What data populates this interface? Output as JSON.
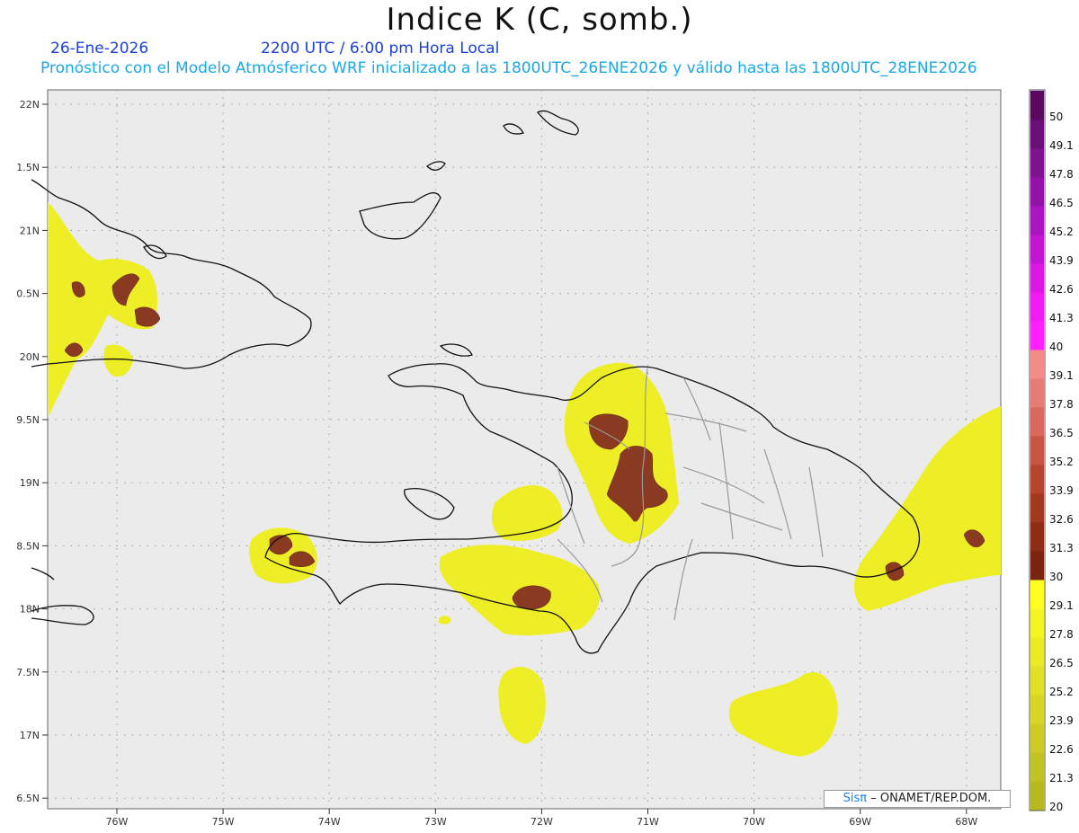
{
  "title": "Indice K (C, somb.)",
  "date": "26-Ene-2026",
  "time": "2200 UTC / 6:00 pm Hora Local",
  "forecast": "Pronóstico con el Modelo Atmósferico WRF inicializado a las 1800UTC_26ENE2026 y válido hasta las  1800UTC_28ENE2026",
  "credit_brand": "Sisπ",
  "credit_org": "– ONAMET/REP.DOM.",
  "lon_labels": [
    "76W",
    "75W",
    "74W",
    "73W",
    "72W",
    "71W",
    "70W",
    "69W",
    "68W"
  ],
  "lat_labels": [
    "22N",
    "1.5N",
    "21N",
    "0.5N",
    "20N",
    "9.5N",
    "19N",
    "8.5N",
    "18N",
    "7.5N",
    "17N",
    "6.5N"
  ],
  "colorbar": {
    "levels": [
      "50",
      "49.1",
      "47.8",
      "46.5",
      "45.2",
      "43.9",
      "42.6",
      "41.3",
      "40",
      "39.1",
      "37.8",
      "36.5",
      "35.2",
      "33.9",
      "32.6",
      "31.3",
      "30",
      "29.1",
      "27.8",
      "26.5",
      "25.2",
      "23.9",
      "22.6",
      "21.3",
      "20"
    ],
    "colors": [
      "#5a0a5e",
      "#6a0f78",
      "#7f138f",
      "#9412a8",
      "#ab14c0",
      "#c316d4",
      "#db18e6",
      "#f01cf3",
      "#ff20ff",
      "#f38b8b",
      "#e77c77",
      "#d9685e",
      "#c85544",
      "#b6452f",
      "#a33821",
      "#8e2c16",
      "#7a2410",
      "#ffff21",
      "#f5f523",
      "#ebeb25",
      "#e0e026",
      "#d6d627",
      "#cccc25",
      "#c2c222",
      "#b8b81f"
    ]
  },
  "colors": {
    "land_bg": "#e8e8e8",
    "yellow": "#f2f22a",
    "brown": "#8b3a22",
    "coast": "#000000",
    "border": "#a0a0a0"
  }
}
